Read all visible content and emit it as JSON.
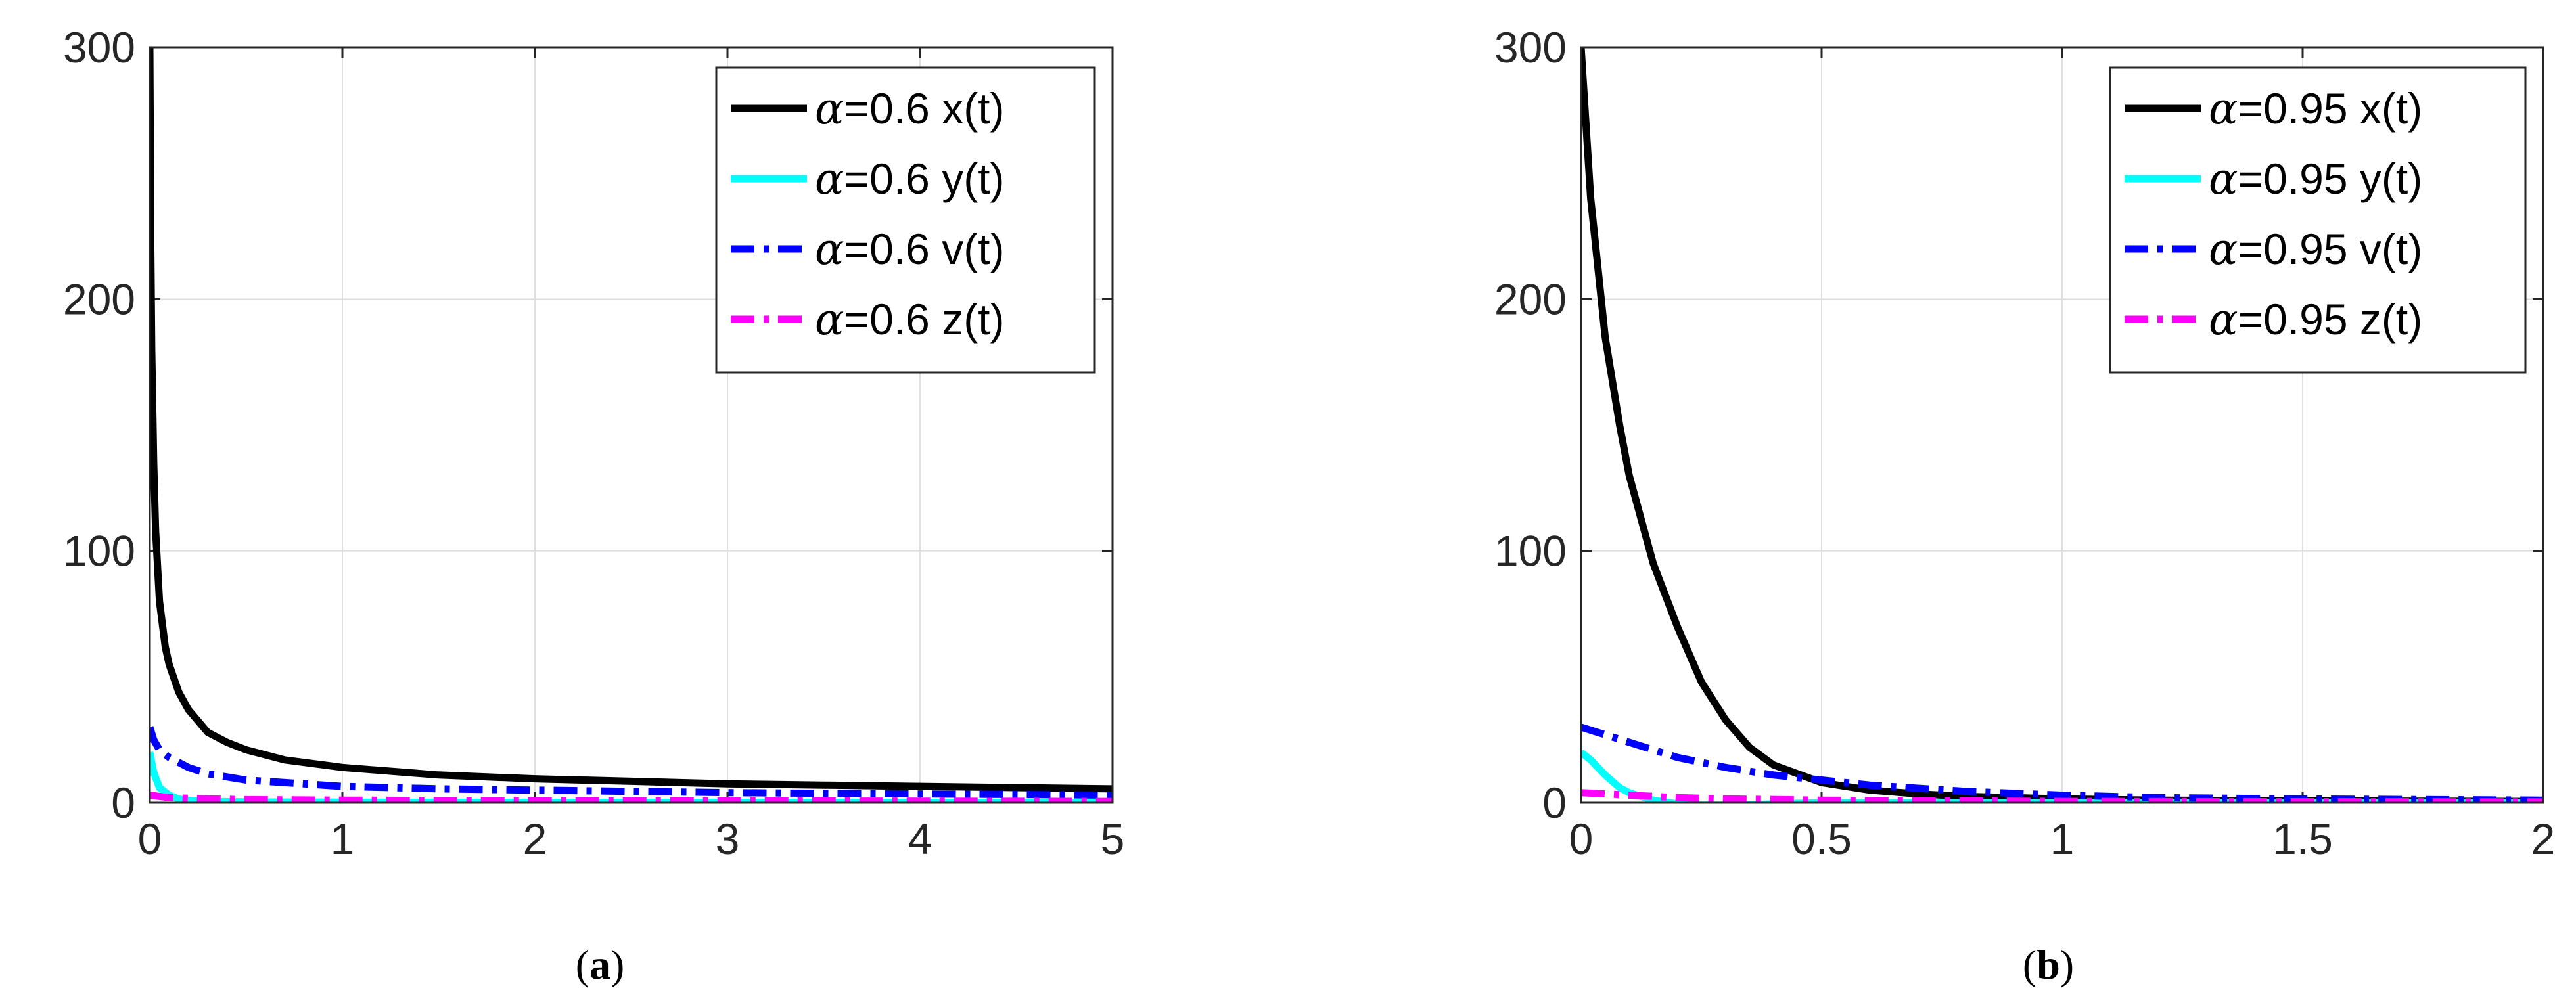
{
  "chart_data": [
    {
      "type": "line",
      "caption": "(a)",
      "caption_letter": "a",
      "xlim": [
        0,
        5
      ],
      "ylim": [
        0,
        300
      ],
      "xticks": [
        "0",
        "1",
        "2",
        "3",
        "4",
        "5"
      ],
      "yticks": [
        "0",
        "100",
        "200",
        "300"
      ],
      "grid": true,
      "legend_position": "top-right",
      "series": [
        {
          "name": "α=0.6 x(t)",
          "alpha_symbol": "α",
          "label_rest": "=0.6 x(t)",
          "color": "#000000",
          "style": "solid",
          "x": [
            0,
            0.005,
            0.01,
            0.02,
            0.03,
            0.05,
            0.08,
            0.1,
            0.15,
            0.2,
            0.3,
            0.4,
            0.5,
            0.7,
            1,
            1.5,
            2,
            2.5,
            3,
            3.5,
            4,
            4.5,
            5
          ],
          "y": [
            300,
            220,
            180,
            135,
            108,
            80,
            62,
            55,
            44,
            37,
            28,
            24,
            21,
            17,
            14,
            11,
            9.5,
            8.5,
            7.5,
            7,
            6.5,
            6,
            5.5
          ]
        },
        {
          "name": "α=0.6 y(t)",
          "alpha_symbol": "α",
          "label_rest": "=0.6 y(t)",
          "color": "#00ffff",
          "style": "solid",
          "x": [
            0,
            0.02,
            0.05,
            0.1,
            0.15,
            0.2,
            0.3,
            0.5,
            1,
            2,
            3,
            4,
            5
          ],
          "y": [
            20,
            12,
            6,
            3,
            1.5,
            1,
            0.5,
            0.3,
            0.2,
            0.1,
            0.1,
            0.1,
            0.1
          ]
        },
        {
          "name": "α=0.6 v(t)",
          "alpha_symbol": "α",
          "label_rest": "=0.6 v(t)",
          "color": "#0000ff",
          "style": "dashdot",
          "x": [
            0,
            0.02,
            0.05,
            0.1,
            0.2,
            0.3,
            0.5,
            1,
            1.5,
            2,
            3,
            4,
            5
          ],
          "y": [
            30,
            25,
            21,
            18,
            14,
            11.5,
            9,
            6.5,
            5.5,
            5,
            4,
            3.5,
            3
          ]
        },
        {
          "name": "α=0.6 z(t)",
          "alpha_symbol": "α",
          "label_rest": "=0.6 z(t)",
          "color": "#ff00ff",
          "style": "dashdot",
          "x": [
            0,
            0.05,
            0.1,
            0.3,
            0.5,
            1,
            2,
            3,
            4,
            5
          ],
          "y": [
            3,
            2.5,
            2,
            1.5,
            1.2,
            1,
            0.8,
            0.7,
            0.6,
            0.5
          ]
        }
      ]
    },
    {
      "type": "line",
      "caption": "(b)",
      "caption_letter": "b",
      "xlim": [
        0,
        2
      ],
      "ylim": [
        0,
        300
      ],
      "xticks": [
        "0",
        "0.5",
        "1",
        "1.5",
        "2"
      ],
      "yticks": [
        "0",
        "100",
        "200",
        "300"
      ],
      "grid": true,
      "legend_position": "top-right",
      "series": [
        {
          "name": "α=0.95 x(t)",
          "alpha_symbol": "α",
          "label_rest": "=0.95 x(t)",
          "color": "#000000",
          "style": "solid",
          "x": [
            0,
            0.02,
            0.05,
            0.08,
            0.1,
            0.15,
            0.2,
            0.25,
            0.3,
            0.35,
            0.4,
            0.5,
            0.6,
            0.7,
            0.8,
            1,
            1.2,
            1.5,
            2
          ],
          "y": [
            300,
            240,
            185,
            150,
            130,
            95,
            70,
            48,
            33,
            22,
            15,
            8,
            5,
            3.5,
            2.5,
            1.5,
            1,
            0.7,
            0.5
          ]
        },
        {
          "name": "α=0.95 y(t)",
          "alpha_symbol": "α",
          "label_rest": "=0.95 y(t)",
          "color": "#00ffff",
          "style": "solid",
          "x": [
            0,
            0.02,
            0.05,
            0.08,
            0.1,
            0.15,
            0.2,
            0.25,
            0.3,
            0.4,
            0.5,
            0.7,
            1,
            1.5,
            2
          ],
          "y": [
            20,
            17,
            11,
            6,
            4,
            1,
            -0.5,
            -1,
            -1,
            -0.5,
            0,
            0,
            0,
            0,
            0
          ]
        },
        {
          "name": "α=0.95 v(t)",
          "alpha_symbol": "α",
          "label_rest": "=0.95 v(t)",
          "color": "#0000ff",
          "style": "dashdot",
          "x": [
            0,
            0.05,
            0.1,
            0.2,
            0.3,
            0.4,
            0.5,
            0.6,
            0.8,
            1,
            1.2,
            1.5,
            2
          ],
          "y": [
            30,
            27,
            24,
            18,
            14,
            11,
            9,
            7,
            4.5,
            3,
            2,
            1.5,
            1
          ]
        },
        {
          "name": "α=0.95 z(t)",
          "alpha_symbol": "α",
          "label_rest": "=0.95 z(t)",
          "color": "#ff00ff",
          "style": "dashdot",
          "x": [
            0,
            0.05,
            0.1,
            0.2,
            0.3,
            0.5,
            0.8,
            1,
            1.5,
            2
          ],
          "y": [
            4,
            3.5,
            3,
            2,
            1.5,
            1,
            0.7,
            0.5,
            0.4,
            0.3
          ]
        }
      ]
    }
  ]
}
